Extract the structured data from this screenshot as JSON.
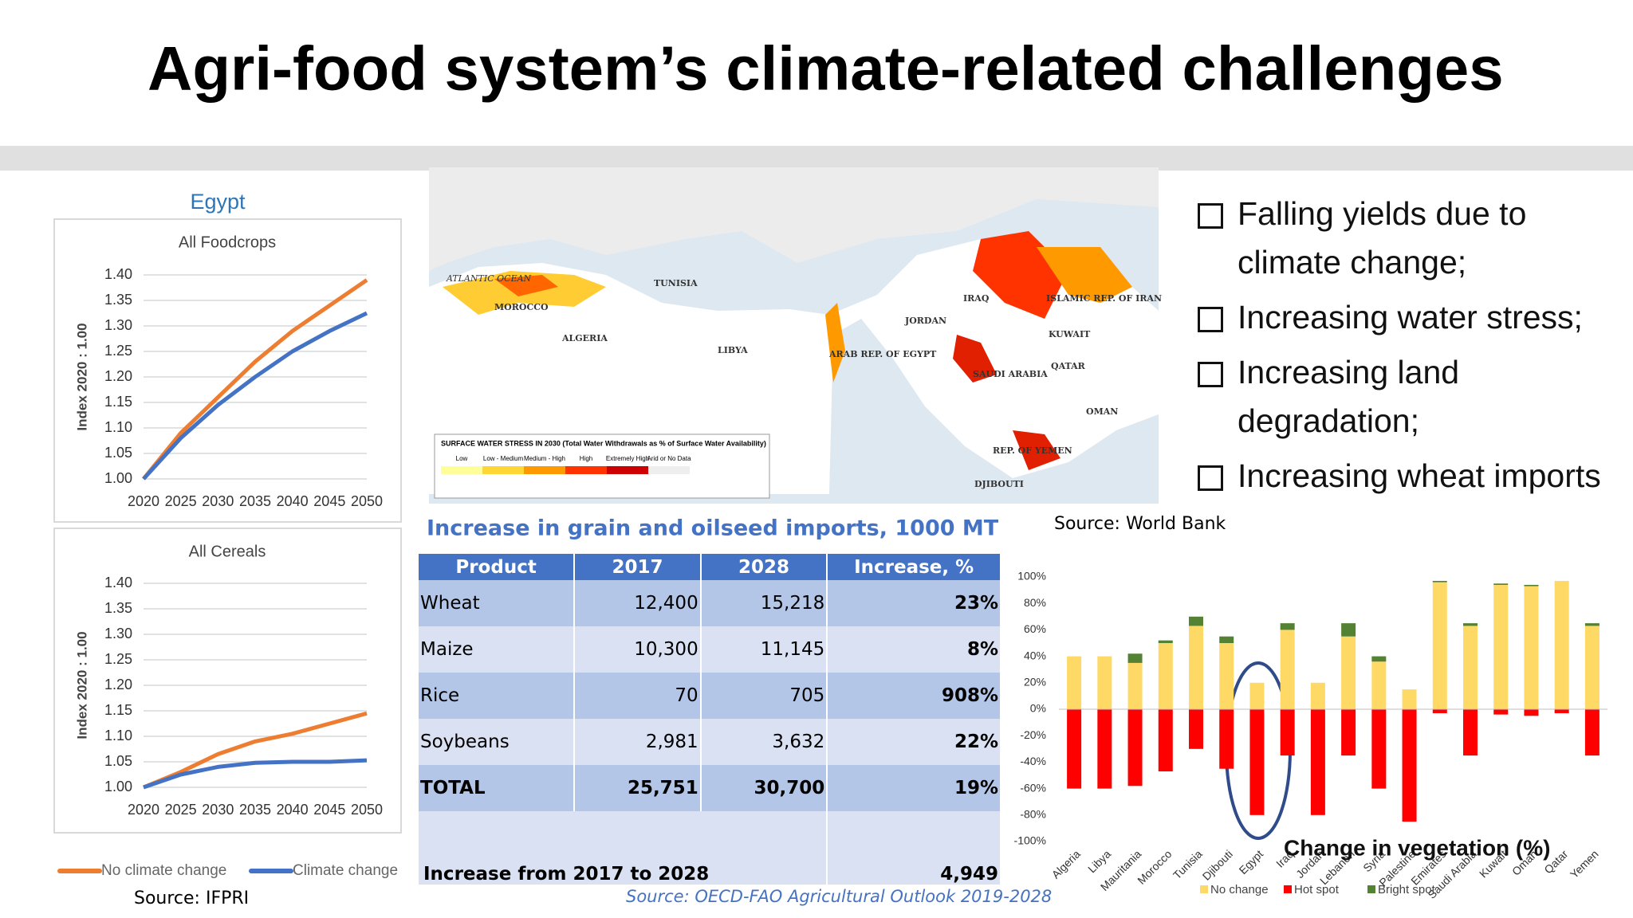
{
  "title": "Agri-food system’s climate-related challenges",
  "egypt": {
    "header": "Egypt",
    "legend": [
      {
        "name": "No climate change",
        "color": "#ed7d31"
      },
      {
        "name": "Climate change",
        "color": "#4472c4"
      }
    ],
    "source": "Source: IFPRI"
  },
  "chart_data": [
    {
      "type": "line",
      "title": "All Foodcrops",
      "y_label": "Index 2020 : 1.00",
      "x": [
        2020,
        2025,
        2030,
        2035,
        2040,
        2045,
        2050
      ],
      "series": [
        {
          "color": "#ed7d31",
          "values": [
            1.0,
            1.09,
            1.16,
            1.23,
            1.29,
            1.34,
            1.39
          ]
        },
        {
          "color": "#4472c4",
          "values": [
            1.0,
            1.08,
            1.145,
            1.2,
            1.25,
            1.29,
            1.325
          ]
        }
      ],
      "xlim": [
        2020,
        2050
      ],
      "xticks": [
        2020,
        2025,
        2030,
        2035,
        2040,
        2045,
        2050
      ],
      "ylim": [
        1.0,
        1.4
      ],
      "yticks": [
        {
          "value": 1.0,
          "label": "1.00"
        },
        1.05,
        {
          "value": 1.1,
          "label": "1.10"
        },
        1.15,
        {
          "value": 1.2,
          "label": "1.20"
        },
        1.25,
        {
          "value": 1.3,
          "label": "1.30"
        },
        1.35,
        {
          "value": 1.4,
          "label": "1.40"
        }
      ],
      "grid": true
    },
    {
      "type": "line",
      "title": "All Cereals",
      "y_label": "Index 2020 : 1.00",
      "x": [
        2020,
        2025,
        2030,
        2035,
        2040,
        2045,
        2050
      ],
      "series": [
        {
          "color": "#ed7d31",
          "values": [
            1.0,
            1.03,
            1.065,
            1.09,
            1.105,
            1.125,
            1.145
          ]
        },
        {
          "color": "#4472c4",
          "values": [
            1.0,
            1.025,
            1.04,
            1.048,
            1.05,
            1.05,
            1.053
          ]
        }
      ],
      "xlim": [
        2020,
        2050
      ],
      "xticks": [
        2020,
        2025,
        2030,
        2035,
        2040,
        2045,
        2050
      ],
      "ylim": [
        1.0,
        1.4
      ],
      "yticks": [
        {
          "value": 1.0,
          "label": "1.00"
        },
        1.05,
        {
          "value": 1.1,
          "label": "1.10"
        },
        1.15,
        {
          "value": 1.2,
          "label": "1.20"
        },
        1.25,
        {
          "value": 1.3,
          "label": "1.30"
        },
        1.35,
        {
          "value": 1.4,
          "label": "1.40"
        }
      ],
      "grid": true
    },
    {
      "type": "stacked_bar",
      "title": "Change in vegetation (%)",
      "categories": [
        "Algeria",
        "Libya",
        "Mauritania",
        "Morocco",
        "Tunisia",
        "Djibouti",
        "Egypt",
        "Iraq",
        "Jordan",
        "Lebanon",
        "Syria",
        "Palestine",
        "Emirates",
        "Saudi Arabia",
        "Kuwait",
        "Oman",
        "Qatar",
        "Yemen"
      ],
      "series": [
        {
          "name": "No change",
          "color": "#ffd966",
          "values": [
            40,
            40,
            35,
            50,
            63,
            50,
            20,
            60,
            20,
            55,
            36,
            15,
            96,
            63,
            94,
            93,
            97,
            63
          ]
        },
        {
          "name": "Hot spot",
          "color": "#ff0000",
          "values": [
            -60,
            -60,
            -58,
            -47,
            -30,
            -45,
            -80,
            -35,
            -80,
            -35,
            -60,
            -85,
            -3,
            -35,
            -4,
            -5,
            -3,
            -35
          ]
        },
        {
          "name": "Bright spot",
          "color": "#548235",
          "values": [
            0,
            0,
            7,
            2,
            7,
            5,
            0,
            5,
            0,
            10,
            4,
            0,
            1,
            2,
            1,
            1,
            0,
            2
          ]
        }
      ],
      "ylim": [
        -100,
        100
      ],
      "yticks": [
        {
          "value": -100,
          "label": "-100%"
        },
        {
          "value": -80,
          "label": "-80%"
        },
        {
          "value": -60,
          "label": "-60%"
        },
        {
          "value": -40,
          "label": "-40%"
        },
        {
          "value": -20,
          "label": "-20%"
        },
        {
          "value": 0,
          "label": "0%"
        },
        {
          "value": 20,
          "label": "20%"
        },
        {
          "value": 40,
          "label": "40%"
        },
        {
          "value": 60,
          "label": "60%"
        },
        {
          "value": 80,
          "label": "80%"
        },
        {
          "value": 100,
          "label": "100%"
        }
      ]
    }
  ],
  "map": {
    "labels": [
      "ATLANTIC OCEAN",
      "MOROCCO",
      "ALGERIA",
      "TUNISIA",
      "LIBYA",
      "ARAB REP. OF EGYPT",
      "JORDAN",
      "IRAQ",
      "ISLAMIC REP. OF IRAN",
      "KUWAIT",
      "SAUDI ARABIA",
      "QATAR",
      "OMAN",
      "REP. OF YEMEN",
      "DJIBOUTI"
    ],
    "legend_title": "SURFACE WATER STRESS IN 2030 (Total Water Withdrawals as % of Surface Water Availability)",
    "classes": [
      "Low",
      "Low - Medium",
      "Medium - High",
      "High",
      "Extremely High",
      "Arid or No Data"
    ],
    "source": "Source: World Bank"
  },
  "table": {
    "title": "Increase in grain and oilseed imports, 1000 MT",
    "header": [
      "Product",
      "2017",
      "2028",
      "Increase, %"
    ],
    "rows": [
      [
        "Wheat",
        "12,400",
        "15,218",
        "23%"
      ],
      [
        "Maize",
        "10,300",
        "11,145",
        "8%"
      ],
      [
        "Rice",
        "70",
        "705",
        "908%"
      ],
      [
        "Soybeans",
        "2,981",
        "3,632",
        "22%"
      ],
      [
        "TOTAL",
        "25,751",
        "30,700",
        "19%"
      ]
    ],
    "footer": [
      "Increase from 2017 to 2028",
      "4,949"
    ],
    "source": "Source: OECD-FAO Agricultural Outlook 2019-2028"
  },
  "bullets": [
    "Falling yields due to climate change;",
    "Increasing water stress;",
    "Increasing land degradation;",
    "Increasing wheat imports"
  ]
}
